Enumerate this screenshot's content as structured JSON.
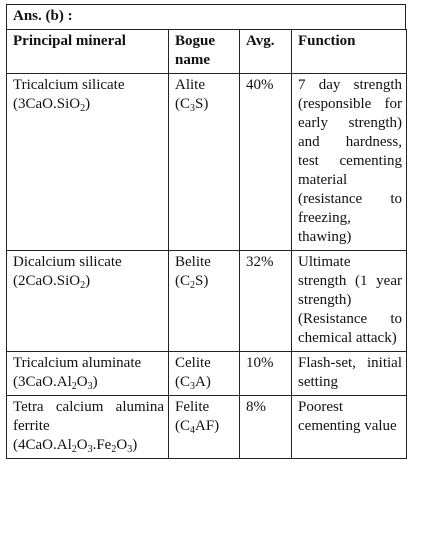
{
  "answer_label": "Ans. (b) :",
  "headers": {
    "mineral": "Principal mineral",
    "bogue": "Bogue name",
    "avg": "Avg.",
    "function": "Function"
  },
  "rows": [
    {
      "mineral_name": "Tricalcium silicate",
      "formula_parts": [
        "(3CaO.SiO",
        "2",
        ")"
      ],
      "bogue_name": "Alite",
      "bogue_parts": [
        "(C",
        "3",
        "S)"
      ],
      "avg": "40%",
      "function": "7 day strength (responsible for early strength) and hardness, test cementing material (resistance to freezing, thawing)"
    },
    {
      "mineral_name": "Dicalcium silicate",
      "formula_parts": [
        "(2CaO.SiO",
        "2",
        ")"
      ],
      "bogue_name": "Belite",
      "bogue_parts": [
        "(C",
        "2",
        "S)"
      ],
      "avg": "32%",
      "function": "Ultimate strength (1 year strength) (Resistance to chemical attack)"
    },
    {
      "mineral_name": "Tricalcium aluminate",
      "formula_parts": [
        "(3CaO.Al",
        "2",
        "O",
        "3",
        ")"
      ],
      "bogue_name": "Celite",
      "bogue_parts": [
        "(C",
        "3",
        "A)"
      ],
      "avg": "10%",
      "function": "Flash-set, initial setting"
    },
    {
      "mineral_name": "Tetra calcium alumina ferrite",
      "formula_parts": [
        "(4CaO.Al",
        "2",
        "O",
        "3",
        ".Fe",
        "2",
        "O",
        "3",
        ")"
      ],
      "bogue_name": "Felite",
      "bogue_parts": [
        "(C",
        "4",
        "AF)"
      ],
      "avg": "8%",
      "function": "Poorest cementing value"
    }
  ]
}
